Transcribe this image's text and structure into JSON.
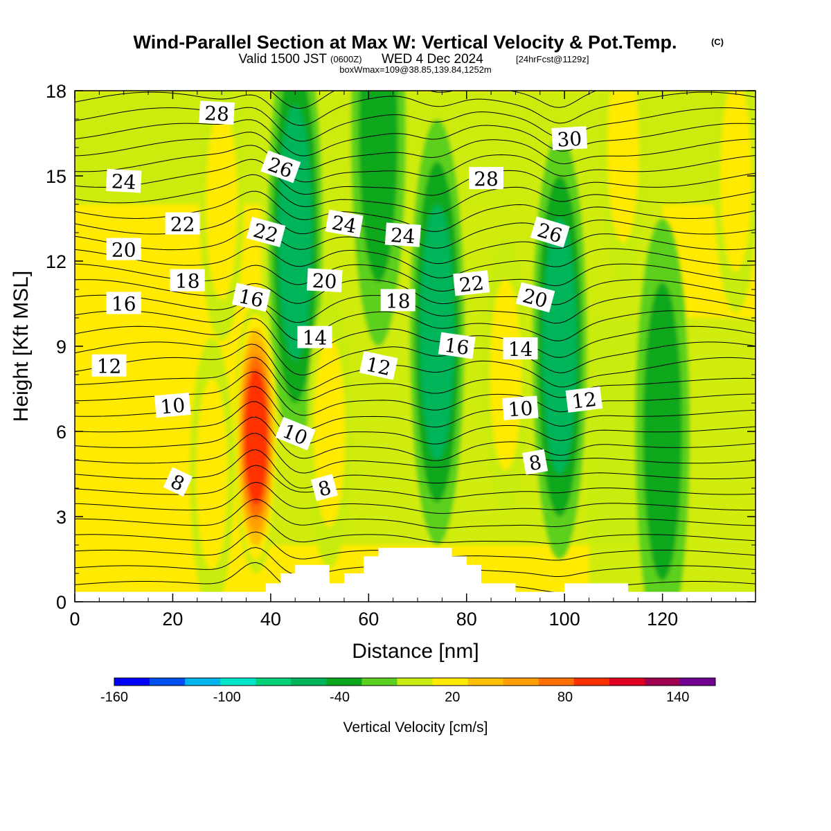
{
  "header": {
    "title": "Wind-Parallel Section at Max W: Vertical Velocity & Pot.Temp.",
    "copyright": "(C)",
    "valid_prefix": "Valid 1500 JST",
    "valid_utc": "(0600Z)",
    "valid_date": "WED 4 Dec 2024",
    "forecast": "[24hrFcst@1129z]",
    "box_info": "boxWmax=109@38.85,139.84,1252m"
  },
  "chart_data": {
    "type": "heatmap",
    "title": "Wind-Parallel Section at Max W: Vertical Velocity & Pot.Temp.",
    "xlabel": "Distance [nm]",
    "ylabel": "Height [Kft MSL]",
    "xlim": [
      0,
      139
    ],
    "ylim": [
      0,
      18
    ],
    "x_ticks": [
      0,
      20,
      40,
      60,
      80,
      100,
      120
    ],
    "x_tick_labels": [
      "0",
      "20",
      "40",
      "60",
      "80",
      "100",
      "120"
    ],
    "y_ticks": [
      0,
      3,
      6,
      9,
      12,
      15,
      18
    ],
    "y_tick_labels": [
      "0",
      "3",
      "6",
      "9",
      "12",
      "15",
      "18"
    ],
    "grid": false,
    "colorbar": {
      "label": "Vertical Velocity [cm/s]",
      "range": [
        -160,
        160
      ],
      "tick_labels": [
        "-160",
        "-100",
        "-40",
        "20",
        "80",
        "140"
      ],
      "tick_values": [
        -160,
        -100,
        -40,
        20,
        80,
        140
      ],
      "colors": [
        "#0000ff",
        "#0050f0",
        "#00b4f0",
        "#00e6c8",
        "#00d27a",
        "#00b45a",
        "#0ba81e",
        "#5cd01e",
        "#c8ec10",
        "#ffea00",
        "#ffc000",
        "#ffa000",
        "#ff7000",
        "#ff3000",
        "#e00020",
        "#a00050",
        "#700090"
      ]
    },
    "terrain_kft": [
      [
        0,
        0.35
      ],
      [
        33,
        0.35
      ],
      [
        39,
        0.35
      ],
      [
        39,
        0.65
      ],
      [
        42,
        0.65
      ],
      [
        42,
        1
      ],
      [
        45,
        1
      ],
      [
        45,
        1.3
      ],
      [
        52,
        1.3
      ],
      [
        52,
        0.65
      ],
      [
        55,
        0.65
      ],
      [
        55,
        1
      ],
      [
        59,
        1
      ],
      [
        59,
        1.6
      ],
      [
        62,
        1.6
      ],
      [
        62,
        1.9
      ],
      [
        77,
        1.9
      ],
      [
        77,
        1.6
      ],
      [
        80,
        1.6
      ],
      [
        80,
        1.3
      ],
      [
        83,
        1.3
      ],
      [
        83,
        0.65
      ],
      [
        90,
        0.65
      ],
      [
        90,
        0.35
      ],
      [
        100,
        0.35
      ],
      [
        100,
        0.65
      ],
      [
        113,
        0.65
      ],
      [
        113,
        0.35
      ],
      [
        139,
        0.35
      ]
    ],
    "updraft_cells": [
      {
        "x": 37,
        "z": 5.8,
        "peak_w": 109
      },
      {
        "x": 52,
        "z": 6.0,
        "peak_w": 40
      },
      {
        "x": 28,
        "z": 4.5,
        "peak_w": 30
      },
      {
        "x": 88,
        "z": 8.0,
        "peak_w": 30
      },
      {
        "x": 112,
        "z": 16.0,
        "peak_w": 30
      },
      {
        "x": 135,
        "z": 15.0,
        "peak_w": 30
      },
      {
        "x": 30,
        "z": 14.0,
        "peak_w": 25
      }
    ],
    "downdraft_cells": [
      {
        "x": 45,
        "z": 13.0,
        "peak_w": -45
      },
      {
        "x": 74,
        "z": 9.5,
        "peak_w": -45
      },
      {
        "x": 99,
        "z": 9.0,
        "peak_w": -45
      },
      {
        "x": 62,
        "z": 16.5,
        "peak_w": -30
      },
      {
        "x": 120,
        "z": 6.0,
        "peak_w": -25
      }
    ],
    "isentrope_labels": [
      {
        "text": "28",
        "x": 29,
        "z": 17.2,
        "angle": 3
      },
      {
        "text": "26",
        "x": 42,
        "z": 15.3,
        "angle": 20
      },
      {
        "text": "24",
        "x": 10,
        "z": 14.8,
        "angle": 3
      },
      {
        "text": "22",
        "x": 22,
        "z": 13.3,
        "angle": 0
      },
      {
        "text": "22",
        "x": 39,
        "z": 13.0,
        "angle": 15
      },
      {
        "text": "24",
        "x": 55,
        "z": 13.3,
        "angle": 10
      },
      {
        "text": "24",
        "x": 67,
        "z": 12.9,
        "angle": 4
      },
      {
        "text": "28",
        "x": 84,
        "z": 14.9,
        "angle": 0
      },
      {
        "text": "30",
        "x": 101,
        "z": 16.3,
        "angle": -3
      },
      {
        "text": "26",
        "x": 97,
        "z": 13.0,
        "angle": 17
      },
      {
        "text": "20",
        "x": 10,
        "z": 12.4,
        "angle": 0
      },
      {
        "text": "18",
        "x": 23,
        "z": 11.3,
        "angle": 0
      },
      {
        "text": "16",
        "x": 10,
        "z": 10.5,
        "angle": 0
      },
      {
        "text": "16",
        "x": 36,
        "z": 10.7,
        "angle": 12
      },
      {
        "text": "20",
        "x": 51,
        "z": 11.3,
        "angle": 3
      },
      {
        "text": "18",
        "x": 66,
        "z": 10.6,
        "angle": 0
      },
      {
        "text": "22",
        "x": 81,
        "z": 11.2,
        "angle": -6
      },
      {
        "text": "20",
        "x": 94,
        "z": 10.7,
        "angle": 15
      },
      {
        "text": "14",
        "x": 49,
        "z": 9.3,
        "angle": 0
      },
      {
        "text": "16",
        "x": 78,
        "z": 9.0,
        "angle": 8
      },
      {
        "text": "14",
        "x": 91,
        "z": 8.9,
        "angle": 0
      },
      {
        "text": "12",
        "x": 7,
        "z": 8.3,
        "angle": 0
      },
      {
        "text": "12",
        "x": 62,
        "z": 8.3,
        "angle": 12
      },
      {
        "text": "12",
        "x": 104,
        "z": 7.1,
        "angle": -7
      },
      {
        "text": "10",
        "x": 20,
        "z": 6.9,
        "angle": -5
      },
      {
        "text": "10",
        "x": 45,
        "z": 5.9,
        "angle": 22
      },
      {
        "text": "10",
        "x": 91,
        "z": 6.8,
        "angle": -4
      },
      {
        "text": "8",
        "x": 21,
        "z": 4.2,
        "angle": 25
      },
      {
        "text": "8",
        "x": 51,
        "z": 4.0,
        "angle": -15
      },
      {
        "text": "8",
        "x": 94,
        "z": 4.9,
        "angle": -10
      }
    ]
  }
}
